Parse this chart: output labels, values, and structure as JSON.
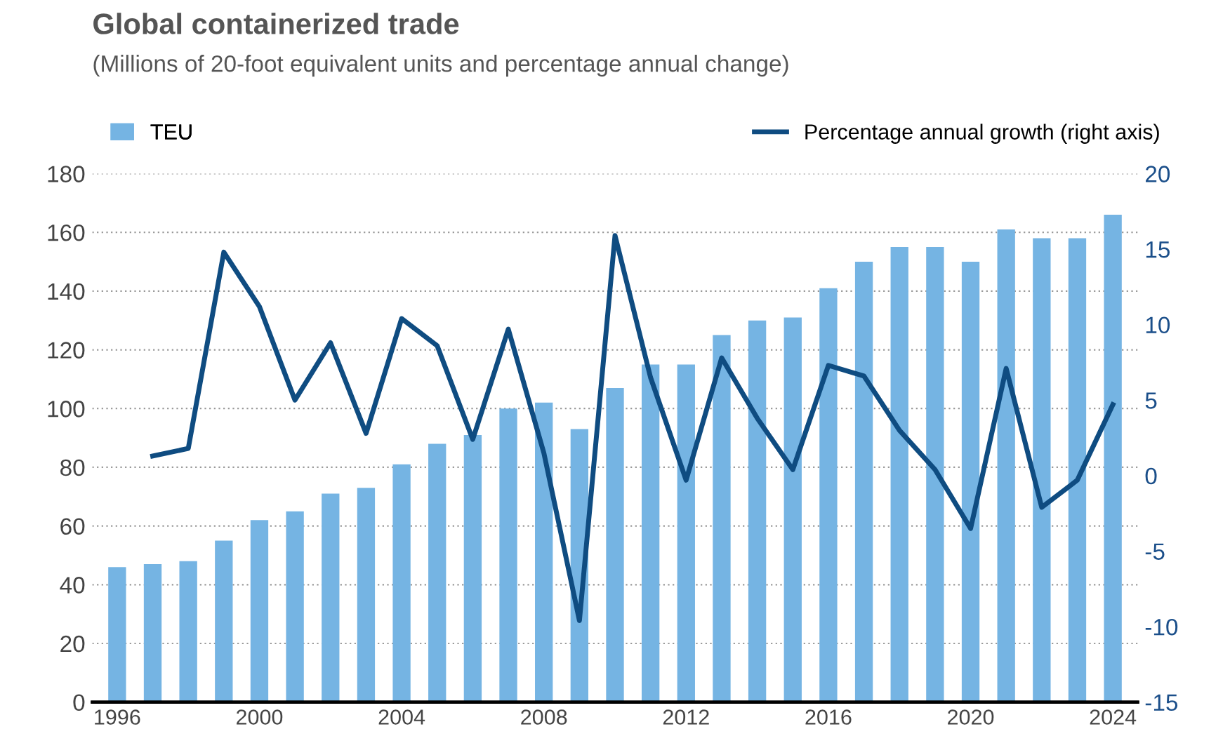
{
  "chart_data": {
    "type": "bar",
    "title": "Global containerized trade",
    "subtitle": "(Millions of 20-foot equivalent units and percentage annual change)",
    "categories": [
      "1996",
      null,
      null,
      null,
      "2000",
      null,
      null,
      null,
      "2004",
      null,
      null,
      null,
      "2008",
      null,
      null,
      null,
      "2012",
      null,
      null,
      null,
      "2016",
      null,
      null,
      null,
      "2020",
      null,
      null,
      null,
      "2024"
    ],
    "series": [
      {
        "name": "TEU",
        "color": "#75b4e3",
        "values": [
          46,
          47,
          48,
          55,
          62,
          65,
          71,
          73,
          81,
          88,
          91,
          100,
          102,
          93,
          107,
          115,
          115,
          125,
          130,
          131,
          141,
          150,
          155,
          155,
          150,
          161,
          158,
          158,
          166
        ]
      },
      {
        "name": "Percentage annual growth (right axis)",
        "type": "line",
        "axis": "y2",
        "color": "#0f4c81",
        "values": [
          null,
          1.3,
          1.8,
          14.8,
          11.2,
          5.0,
          8.8,
          2.8,
          10.4,
          8.6,
          2.4,
          9.7,
          1.5,
          -9.6,
          15.9,
          6.5,
          -0.3,
          7.8,
          3.8,
          0.4,
          7.3,
          6.6,
          3.0,
          0.4,
          -3.5,
          7.1,
          -2.1,
          -0.3,
          4.7
        ]
      }
    ],
    "ylim": [
      0,
      180
    ],
    "yticks": [
      0,
      20,
      40,
      60,
      80,
      100,
      120,
      140,
      160,
      180
    ],
    "y2lim": [
      -15,
      20
    ],
    "y2ticks": [
      -15,
      -10,
      -5,
      0,
      5,
      10,
      15,
      20
    ],
    "grid": "y",
    "legend": "top"
  }
}
